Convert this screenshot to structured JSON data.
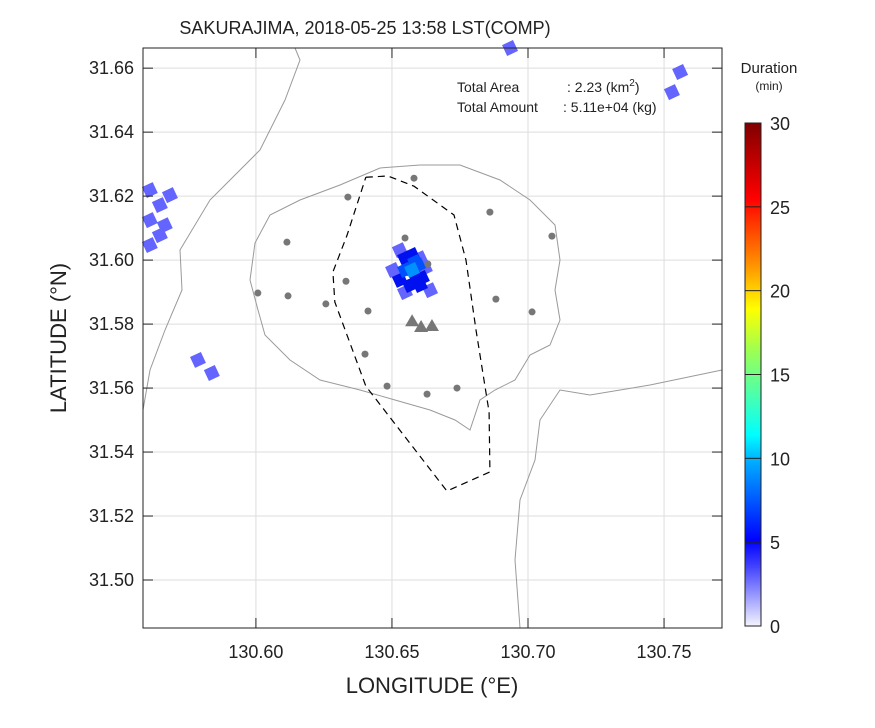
{
  "chart_data": {
    "type": "map",
    "title": "SAKURAJIMA, 2018-05-25 13:58 LST(COMP)",
    "xlabel": "LONGITUDE (°E)",
    "ylabel": "LATITUDE (°N)",
    "xlim": [
      130.5585,
      130.7713
    ],
    "ylim": [
      31.485,
      31.6663
    ],
    "grid": true,
    "xticks": [
      {
        "v": 130.6,
        "label": "130.60"
      },
      {
        "v": 130.65,
        "label": "130.65"
      },
      {
        "v": 130.7,
        "label": "130.70"
      },
      {
        "v": 130.75,
        "label": "130.75"
      }
    ],
    "yticks": [
      {
        "v": 31.5,
        "label": "31.50"
      },
      {
        "v": 31.52,
        "label": "31.52"
      },
      {
        "v": 31.54,
        "label": "31.54"
      },
      {
        "v": 31.56,
        "label": "31.56"
      },
      {
        "v": 31.58,
        "label": "31.58"
      },
      {
        "v": 31.6,
        "label": "31.60"
      },
      {
        "v": 31.62,
        "label": "31.62"
      },
      {
        "v": 31.64,
        "label": "31.64"
      },
      {
        "v": 31.66,
        "label": "31.66"
      }
    ],
    "annotation": {
      "area_label": "Total Area",
      "area_value": ": 2.23 (km",
      "area_sup": "2",
      "area_close": ")",
      "amount_label": "Total Amount",
      "amount_value": ": 5.11e+04 (kg)"
    },
    "colorbar": {
      "title": "Duration",
      "unit": "(min)",
      "range": [
        0,
        30
      ],
      "ticks": [
        {
          "v": 0,
          "label": "0"
        },
        {
          "v": 5,
          "label": "5"
        },
        {
          "v": 10,
          "label": "10"
        },
        {
          "v": 15,
          "label": "15"
        },
        {
          "v": 20,
          "label": "20"
        },
        {
          "v": 25,
          "label": "25"
        },
        {
          "v": 30,
          "label": "30"
        }
      ]
    },
    "stations": [
      [
        130.6581,
        31.6256
      ],
      [
        130.6338,
        31.6197
      ],
      [
        130.6114,
        31.6056
      ],
      [
        130.686,
        31.615
      ],
      [
        130.7088,
        31.6075
      ],
      [
        130.6548,
        31.6069
      ],
      [
        130.6632,
        31.5988
      ],
      [
        130.6007,
        31.5897
      ],
      [
        130.6118,
        31.5888
      ],
      [
        130.6257,
        31.5863
      ],
      [
        130.6331,
        31.5934
      ],
      [
        130.6412,
        31.5841
      ],
      [
        130.6882,
        31.5878
      ],
      [
        130.7015,
        31.5838
      ],
      [
        130.6401,
        31.5706
      ],
      [
        130.6482,
        31.5606
      ],
      [
        130.6629,
        31.5581
      ],
      [
        130.6739,
        31.56
      ]
    ],
    "vents": [
      [
        130.6574,
        31.5809
      ],
      [
        130.6607,
        31.5791
      ],
      [
        130.6647,
        31.5794
      ]
    ],
    "zone": [
      [
        130.6404,
        31.6259
      ],
      [
        130.6485,
        31.6263
      ],
      [
        130.6581,
        31.6231
      ],
      [
        130.6728,
        31.6141
      ],
      [
        130.6772,
        31.6
      ],
      [
        130.6809,
        31.5781
      ],
      [
        130.6857,
        31.5525
      ],
      [
        130.686,
        31.5338
      ],
      [
        130.6702,
        31.5278
      ],
      [
        130.6404,
        31.5606
      ],
      [
        130.629,
        31.5869
      ],
      [
        130.6283,
        31.5963
      ],
      [
        130.6335,
        31.6078
      ],
      [
        130.6404,
        31.6259
      ]
    ],
    "cells": [
      [
        130.6529,
        31.6031,
        1.5
      ],
      [
        130.6603,
        31.6006,
        1.5
      ],
      [
        130.6504,
        31.5969,
        1.5
      ],
      [
        130.664,
        31.5906,
        1.5
      ],
      [
        130.6548,
        31.59,
        1.5
      ],
      [
        130.6621,
        31.5975,
        1.5
      ],
      [
        130.6548,
        31.6006,
        4
      ],
      [
        130.6574,
        31.6016,
        4
      ],
      [
        130.6529,
        31.5938,
        4
      ],
      [
        130.6566,
        31.5922,
        4
      ],
      [
        130.6603,
        31.5922,
        4
      ],
      [
        130.6585,
        31.5953,
        4
      ],
      [
        130.661,
        31.5944,
        4
      ],
      [
        130.6566,
        31.5975,
        6
      ],
      [
        130.6596,
        31.5984,
        6
      ],
      [
        130.6548,
        31.5969,
        6
      ],
      [
        130.6585,
        31.5994,
        6
      ],
      [
        130.6574,
        31.5969,
        8
      ],
      [
        130.561,
        31.6219,
        1.5
      ],
      [
        130.5647,
        31.6172,
        1.5
      ],
      [
        130.561,
        31.6125,
        1.5
      ],
      [
        130.5647,
        31.6078,
        1.5
      ],
      [
        130.561,
        31.6047,
        1.5
      ],
      [
        130.5684,
        31.6203,
        1.5
      ],
      [
        130.5665,
        31.6109,
        1.5
      ],
      [
        130.5787,
        31.5688,
        1.5
      ],
      [
        130.5838,
        31.5647,
        1.5
      ],
      [
        130.7559,
        31.6588,
        1.5
      ],
      [
        130.7529,
        31.6525,
        1.5
      ],
      [
        130.6934,
        31.6663,
        1.5
      ]
    ]
  }
}
